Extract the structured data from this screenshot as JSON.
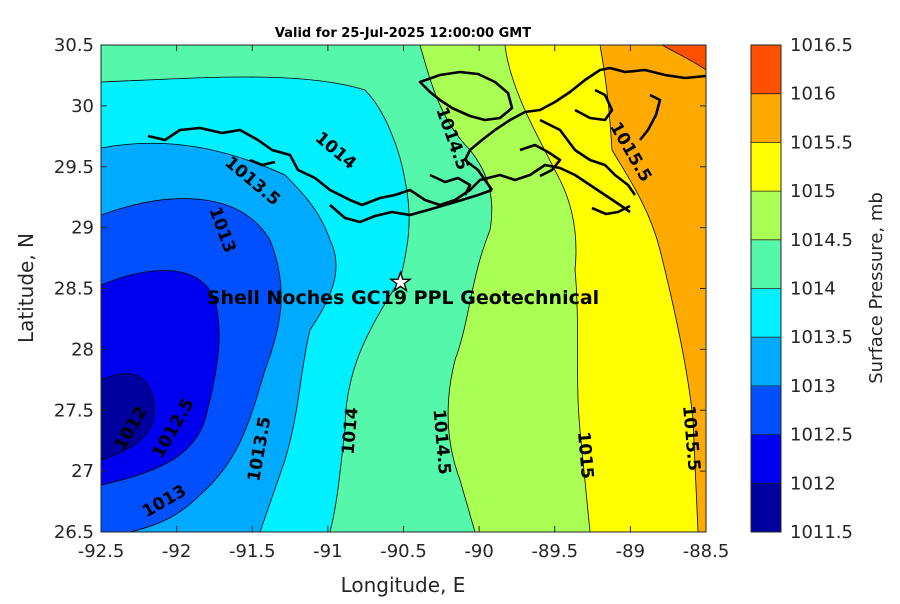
{
  "chart_data": {
    "type": "contour",
    "title": "Valid for 25-Jul-2025 12:00:00 GMT",
    "xlabel": "Longitude, E",
    "ylabel": "Latitude, N",
    "xlim": [
      -92.5,
      -88.5
    ],
    "ylim": [
      26.5,
      30.5
    ],
    "x_ticks": [
      "-92.5",
      "-92",
      "-91.5",
      "-91",
      "-90.5",
      "-90",
      "-89.5",
      "-89",
      "-88.5"
    ],
    "y_ticks": [
      "30.5",
      "30",
      "29.5",
      "29",
      "28.5",
      "28",
      "27.5",
      "27",
      "26.5"
    ],
    "levels": [
      1011.5,
      1012,
      1012.5,
      1013,
      1013.5,
      1014,
      1014.5,
      1015,
      1015.5,
      1016,
      1016.5
    ],
    "level_colors": [
      "#00009e",
      "#0000f0",
      "#0050ff",
      "#00aaff",
      "#00f0ff",
      "#55f7aa",
      "#aaff55",
      "#ffff00",
      "#ffaa00",
      "#ff5000",
      "#ff0000"
    ],
    "colorbar": {
      "label": "Surface Pressure, mb",
      "ticks": [
        "1016.5",
        "1016",
        "1015.5",
        "1015",
        "1014.5",
        "1014",
        "1013.5",
        "1013",
        "1012.5",
        "1012",
        "1011.5"
      ]
    },
    "contour_labels": [
      {
        "text": "1012",
        "lon": -92.3,
        "lat": 27.35,
        "angle": -60
      },
      {
        "text": "1012.5",
        "lon": -92.02,
        "lat": 27.35,
        "angle": -60
      },
      {
        "text": "1013",
        "lon": -92.08,
        "lat": 26.75,
        "angle": -30
      },
      {
        "text": "1013",
        "lon": -91.7,
        "lat": 28.98,
        "angle": 70
      },
      {
        "text": "1013.5",
        "lon": -91.5,
        "lat": 29.38,
        "angle": 40
      },
      {
        "text": "1013.5",
        "lon": -91.45,
        "lat": 27.18,
        "angle": -80
      },
      {
        "text": "1014",
        "lon": -90.95,
        "lat": 29.63,
        "angle": 40
      },
      {
        "text": "1014",
        "lon": -90.85,
        "lat": 27.33,
        "angle": -85
      },
      {
        "text": "1014.5",
        "lon": -90.18,
        "lat": 29.73,
        "angle": 70
      },
      {
        "text": "1014.5",
        "lon": -90.25,
        "lat": 27.24,
        "angle": 85
      },
      {
        "text": "1015",
        "lon": -89.3,
        "lat": 27.13,
        "angle": 85
      },
      {
        "text": "1015.5",
        "lon": -89.0,
        "lat": 29.62,
        "angle": 60
      },
      {
        "text": "1015.5",
        "lon": -88.6,
        "lat": 27.27,
        "angle": 85
      }
    ],
    "marker": {
      "lon": -90.52,
      "lat": 28.55,
      "label": "Shell Noches   GC19 PPL  Geotechnical"
    }
  }
}
